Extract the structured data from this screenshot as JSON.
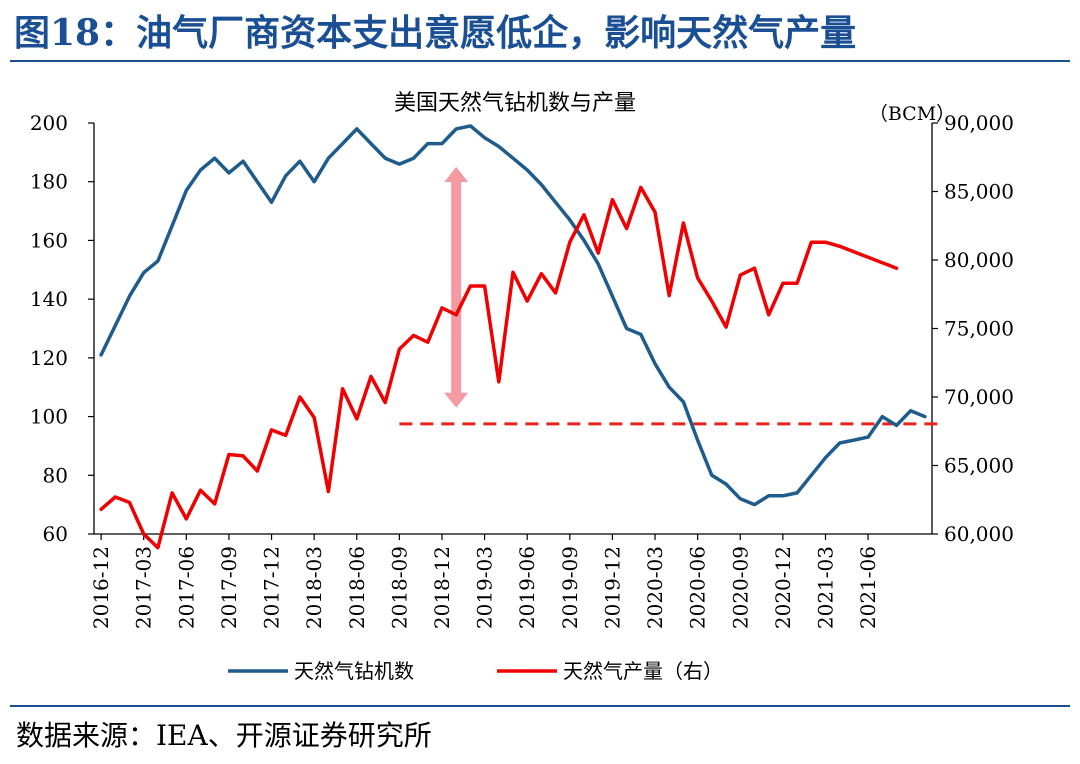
{
  "figure": {
    "title": "图18：油气厂商资本支出意愿低企，影响天然气产量",
    "source": "数据来源：IEA、开源证券研究所"
  },
  "chart_data": {
    "type": "line",
    "title": "美国天然气钻机数与产量",
    "x_tick_labels": [
      "2016-12",
      "2017-03",
      "2017-06",
      "2017-09",
      "2017-12",
      "2018-03",
      "2018-06",
      "2018-09",
      "2018-12",
      "2019-03",
      "2019-06",
      "2019-09",
      "2019-12",
      "2020-03",
      "2020-06",
      "2020-09",
      "2020-12",
      "2021-03",
      "2021-06"
    ],
    "x_start": "2016-12",
    "left_axis": {
      "ylim": [
        60,
        200
      ],
      "ticks": [
        60,
        80,
        100,
        120,
        140,
        160,
        180,
        200
      ]
    },
    "right_axis": {
      "unit": "（BCM）",
      "ylim": [
        60000,
        90000
      ],
      "ticks": [
        "60,000",
        "65,000",
        "70,000",
        "75,000",
        "80,000",
        "85,000",
        "90,000"
      ],
      "tick_values": [
        60000,
        65000,
        70000,
        75000,
        80000,
        85000,
        90000
      ]
    },
    "series": [
      {
        "name": "天然气钻机数",
        "axis": "left",
        "color": "#1f5c8c",
        "points": [
          [
            "2016-12",
            121
          ],
          [
            "2017-01",
            131
          ],
          [
            "2017-02",
            141
          ],
          [
            "2017-03",
            149
          ],
          [
            "2017-04",
            153
          ],
          [
            "2017-05",
            165
          ],
          [
            "2017-06",
            177
          ],
          [
            "2017-07",
            184
          ],
          [
            "2017-08",
            188
          ],
          [
            "2017-09",
            183
          ],
          [
            "2017-10",
            187
          ],
          [
            "2017-11",
            180
          ],
          [
            "2017-12",
            173
          ],
          [
            "2018-01",
            182
          ],
          [
            "2018-02",
            187
          ],
          [
            "2018-03",
            180
          ],
          [
            "2018-04",
            188
          ],
          [
            "2018-05",
            193
          ],
          [
            "2018-06",
            198
          ],
          [
            "2018-07",
            193
          ],
          [
            "2018-08",
            188
          ],
          [
            "2018-09",
            186
          ],
          [
            "2018-10",
            188
          ],
          [
            "2018-11",
            193
          ],
          [
            "2018-12",
            193
          ],
          [
            "2019-01",
            198
          ],
          [
            "2019-02",
            199
          ],
          [
            "2019-03",
            195
          ],
          [
            "2019-04",
            192
          ],
          [
            "2019-05",
            188
          ],
          [
            "2019-06",
            184
          ],
          [
            "2019-07",
            179
          ],
          [
            "2019-08",
            173
          ],
          [
            "2019-09",
            167
          ],
          [
            "2019-10",
            160
          ],
          [
            "2019-11",
            152
          ],
          [
            "2019-12",
            141
          ],
          [
            "2020-01",
            130
          ],
          [
            "2020-02",
            128
          ],
          [
            "2020-03",
            118
          ],
          [
            "2020-04",
            110
          ],
          [
            "2020-05",
            105
          ],
          [
            "2020-06",
            92
          ],
          [
            "2020-07",
            80
          ],
          [
            "2020-08",
            77
          ],
          [
            "2020-09",
            72
          ],
          [
            "2020-10",
            70
          ],
          [
            "2020-11",
            73
          ],
          [
            "2020-12",
            73
          ],
          [
            "2021-01",
            74
          ],
          [
            "2021-02",
            80
          ],
          [
            "2021-03",
            86
          ],
          [
            "2021-04",
            91
          ],
          [
            "2021-05",
            92
          ],
          [
            "2021-06",
            93
          ],
          [
            "2021-07",
            100
          ],
          [
            "2021-08",
            97
          ],
          [
            "2021-09",
            102
          ],
          [
            "2021-10",
            100
          ]
        ]
      },
      {
        "name": "天然气产量（右）",
        "axis": "right",
        "color": "#f00000",
        "points": [
          [
            "2016-12",
            61800
          ],
          [
            "2017-01",
            62700
          ],
          [
            "2017-02",
            62300
          ],
          [
            "2017-03",
            60000
          ],
          [
            "2017-04",
            59000
          ],
          [
            "2017-05",
            63000
          ],
          [
            "2017-06",
            61100
          ],
          [
            "2017-07",
            63200
          ],
          [
            "2017-08",
            62200
          ],
          [
            "2017-09",
            65800
          ],
          [
            "2017-10",
            65700
          ],
          [
            "2017-11",
            64600
          ],
          [
            "2017-12",
            67600
          ],
          [
            "2018-01",
            67200
          ],
          [
            "2018-02",
            70000
          ],
          [
            "2018-03",
            68500
          ],
          [
            "2018-04",
            63100
          ],
          [
            "2018-05",
            70600
          ],
          [
            "2018-06",
            68400
          ],
          [
            "2018-07",
            71500
          ],
          [
            "2018-08",
            69600
          ],
          [
            "2018-09",
            73500
          ],
          [
            "2018-10",
            74500
          ],
          [
            "2018-11",
            74000
          ],
          [
            "2018-12",
            76500
          ],
          [
            "2019-01",
            76000
          ],
          [
            "2019-02",
            78100
          ],
          [
            "2019-03",
            78100
          ],
          [
            "2019-04",
            71100
          ],
          [
            "2019-05",
            79100
          ],
          [
            "2019-06",
            77000
          ],
          [
            "2019-07",
            79000
          ],
          [
            "2019-08",
            77600
          ],
          [
            "2019-09",
            81300
          ],
          [
            "2019-10",
            83300
          ],
          [
            "2019-11",
            80500
          ],
          [
            "2019-12",
            84400
          ],
          [
            "2020-01",
            82300
          ],
          [
            "2020-02",
            85300
          ],
          [
            "2020-03",
            83500
          ],
          [
            "2020-04",
            77400
          ],
          [
            "2020-05",
            82700
          ],
          [
            "2020-06",
            78700
          ],
          [
            "2020-07",
            77000
          ],
          [
            "2020-08",
            75100
          ],
          [
            "2020-09",
            78900
          ],
          [
            "2020-10",
            79400
          ],
          [
            "2020-11",
            76000
          ],
          [
            "2020-12",
            78300
          ],
          [
            "2021-01",
            78300
          ],
          [
            "2021-02",
            81300
          ],
          [
            "2021-03",
            81300
          ],
          [
            "2021-04",
            81000
          ],
          [
            "2021-05",
            80600
          ],
          [
            "2021-06",
            80200
          ],
          [
            "2021-07",
            79800
          ],
          [
            "2021-08",
            79400
          ]
        ]
      }
    ],
    "reference_line": {
      "axis": "left",
      "value": 97.5,
      "from": "2018-09",
      "to": "2021-11",
      "color": "#e8231c",
      "style": "dashed"
    },
    "arrow": {
      "at": "2019-01",
      "from": 185,
      "to": 103,
      "direction": "both",
      "color": "#f49aa0"
    },
    "legend": {
      "placement": "bottom"
    },
    "grid": false
  }
}
